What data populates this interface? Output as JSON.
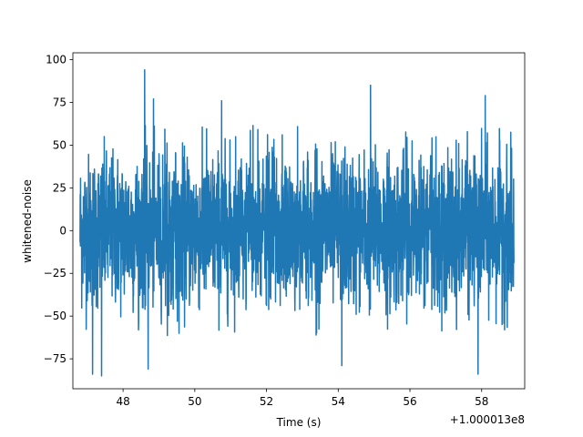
{
  "chart_data": {
    "type": "line",
    "title": "",
    "xlabel": "Time (s)",
    "ylabel": "whitened-noise",
    "x_offset_label": "+1.000013e8",
    "xlim": [
      46.6,
      59.2
    ],
    "ylim": [
      -92.5,
      104.0
    ],
    "x_ticks": [
      48,
      50,
      52,
      54,
      56,
      58
    ],
    "x_tick_labels": [
      "48",
      "50",
      "52",
      "54",
      "56",
      "58"
    ],
    "y_ticks": [
      -75,
      -50,
      -25,
      0,
      25,
      50,
      75,
      100
    ],
    "y_tick_labels": [
      "−75",
      "−50",
      "−25",
      "0",
      "25",
      "50",
      "75",
      "100"
    ],
    "grid": false,
    "series": [
      {
        "color": "#1f77b4",
        "x_start": 46.8,
        "x_end": 58.9,
        "peaks": [
          {
            "x": 48.6,
            "y": 94
          },
          {
            "x": 54.9,
            "y": 85
          },
          {
            "x": 58.1,
            "y": 79
          },
          {
            "x": 48.85,
            "y": 77
          },
          {
            "x": 50.75,
            "y": 76
          },
          {
            "x": 47.15,
            "y": -84
          },
          {
            "x": 47.4,
            "y": -85
          },
          {
            "x": 48.7,
            "y": -81
          },
          {
            "x": 54.1,
            "y": -79
          },
          {
            "x": 57.9,
            "y": -84
          }
        ]
      }
    ]
  }
}
